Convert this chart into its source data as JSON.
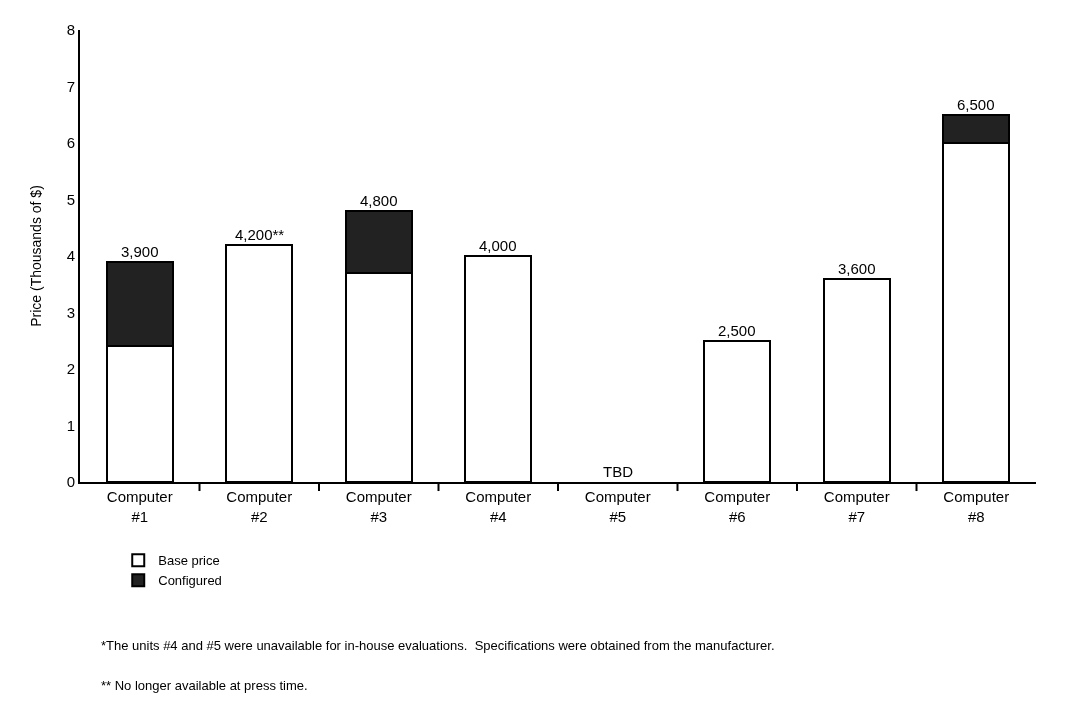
{
  "chart_data": {
    "type": "bar",
    "stacked": true,
    "ylabel": "Price (Thousands of $)",
    "categories": [
      "Computer #1",
      "Computer #2",
      "Computer #3",
      "Computer #4",
      "Computer #5",
      "Computer #6",
      "Computer #7",
      "Computer #8"
    ],
    "series": [
      {
        "name": "Base price",
        "color": "#ffffff",
        "values": [
          2.4,
          4.2,
          3.7,
          4.0,
          null,
          2.5,
          3.6,
          6.0
        ]
      },
      {
        "name": "Configured",
        "color": "#222222",
        "values": [
          1.5,
          null,
          1.1,
          null,
          null,
          null,
          null,
          0.5
        ]
      }
    ],
    "totals": [
      "3,900",
      "4,200**",
      "4,800",
      "4,000",
      "TBD",
      "2,500",
      "3,600",
      "6,500"
    ],
    "ylim": [
      0,
      8
    ],
    "yticks": [
      0,
      1,
      2,
      3,
      4,
      5,
      6,
      7,
      8
    ],
    "grid": false,
    "legend": "bottom left",
    "annotations": [
      "*The units #4 and #5 were unavailable for in-house evaluations.  Specifications were obtained from the manufacturer.",
      "** No longer available at press time."
    ]
  }
}
